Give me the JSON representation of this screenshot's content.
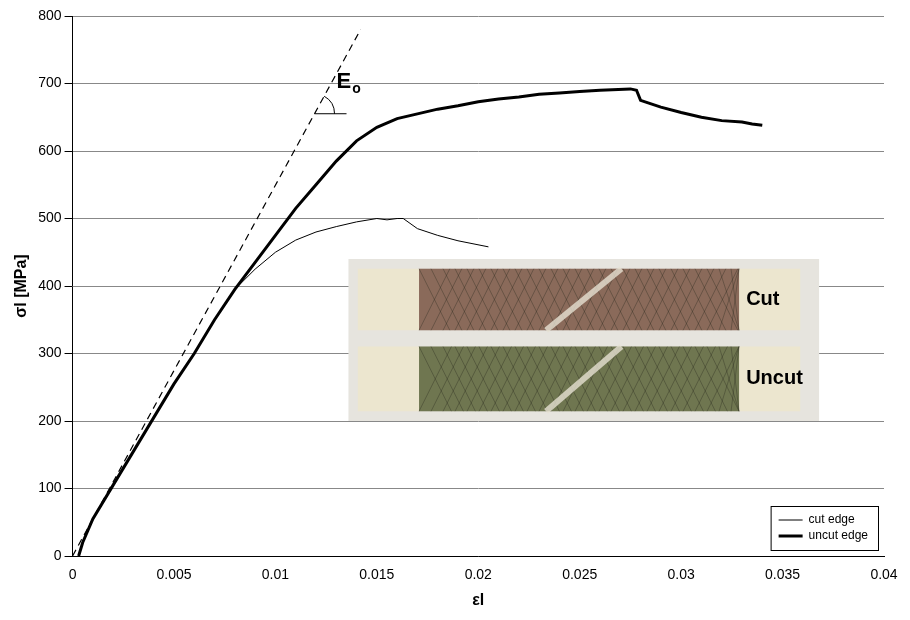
{
  "chart_data": {
    "type": "line",
    "x_label": "εl",
    "y_label": "σl [MPa]",
    "xlim": [
      0,
      0.04
    ],
    "xticks": [
      0,
      0.005,
      0.01,
      0.015,
      0.02,
      0.025,
      0.03,
      0.035,
      0.04
    ],
    "ylim": [
      0,
      800
    ],
    "yticks": [
      0,
      100,
      200,
      300,
      400,
      500,
      600,
      700,
      800
    ],
    "grid": "y",
    "legend": "lower right",
    "series": [
      {
        "name": "cut edge",
        "color": "#000000",
        "line_style": "solid",
        "x": [
          0.0003,
          0.0005,
          0.001,
          0.002,
          0.003,
          0.004,
          0.005,
          0.006,
          0.007,
          0.008,
          0.009,
          0.01,
          0.011,
          0.012,
          0.013,
          0.014,
          0.015,
          0.0155,
          0.016,
          0.0163,
          0.017,
          0.018,
          0.019,
          0.0205
        ],
        "values": [
          0,
          20,
          55,
          105,
          155,
          205,
          255,
          300,
          350,
          395,
          425,
          450,
          468,
          480,
          488,
          495,
          500,
          498,
          500,
          500,
          485,
          475,
          467,
          458
        ]
      },
      {
        "name": "uncut edge",
        "color": "#000000",
        "line_style": "solid",
        "x": [
          0.0003,
          0.0005,
          0.001,
          0.002,
          0.003,
          0.004,
          0.005,
          0.006,
          0.007,
          0.008,
          0.009,
          0.01,
          0.011,
          0.012,
          0.013,
          0.014,
          0.015,
          0.016,
          0.017,
          0.018,
          0.019,
          0.02,
          0.021,
          0.022,
          0.023,
          0.024,
          0.025,
          0.026,
          0.0275,
          0.0278,
          0.028,
          0.029,
          0.03,
          0.031,
          0.032,
          0.033,
          0.0335,
          0.034
        ],
        "values": [
          0,
          20,
          55,
          105,
          155,
          205,
          255,
          300,
          350,
          395,
          435,
          475,
          515,
          550,
          585,
          615,
          635,
          648,
          655,
          662,
          667,
          673,
          677,
          680,
          684,
          686,
          688,
          690,
          692,
          690,
          675,
          665,
          657,
          650,
          645,
          643,
          640,
          638
        ]
      }
    ],
    "tangent": {
      "label": "Eo",
      "color": "#000000",
      "line_style": "dashed",
      "x": [
        0,
        0.0142
      ],
      "values": [
        0,
        780
      ]
    },
    "inset": {
      "labels": [
        "Cut",
        "Uncut"
      ]
    }
  }
}
